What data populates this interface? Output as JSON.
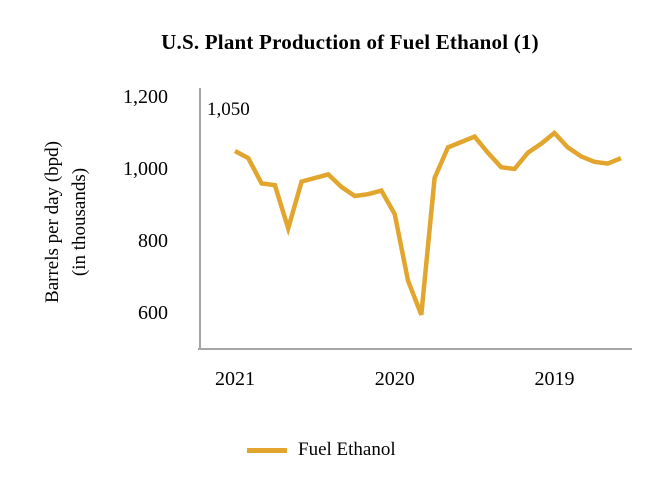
{
  "chart_data": {
    "type": "line",
    "title": "U.S. Plant Production of Fuel Ethanol (1)",
    "grid": "off",
    "axis_color": "#A6A6A6",
    "text_color": "#000000",
    "background_color": "#FFFFFF",
    "y_axis": {
      "label_lines": [
        "Barrels per day (bpd)",
        "(in thousands)"
      ],
      "ticks": [
        {
          "label": "1,200",
          "value": 1200
        },
        {
          "label": "1,000",
          "value": 1000
        },
        {
          "label": "800",
          "value": 800
        },
        {
          "label": "600",
          "value": 600
        }
      ],
      "ylim": [
        500,
        1225
      ]
    },
    "x_axis": {
      "direction": "time increases right-to-left (most recent on left)",
      "ticks": [
        {
          "label": "2021",
          "point_index": 0
        },
        {
          "label": "2020",
          "point_index": 12
        },
        {
          "label": "2019",
          "point_index": 24
        }
      ]
    },
    "annotations": [
      {
        "text": "1,050",
        "meaning": "value of most recent (leftmost) data point"
      }
    ],
    "series": [
      {
        "name": "Fuel Ethanol",
        "color": "#E2A62E",
        "values": [
          1050,
          1030,
          960,
          955,
          835,
          965,
          975,
          985,
          950,
          925,
          930,
          940,
          875,
          690,
          595,
          975,
          1060,
          1075,
          1090,
          1045,
          1005,
          1000,
          1045,
          1070,
          1100,
          1060,
          1035,
          1020,
          1015,
          1030
        ]
      }
    ],
    "legend": {
      "position": "bottom",
      "items": [
        {
          "label": "Fuel Ethanol",
          "color": "#E2A62E"
        }
      ]
    }
  }
}
